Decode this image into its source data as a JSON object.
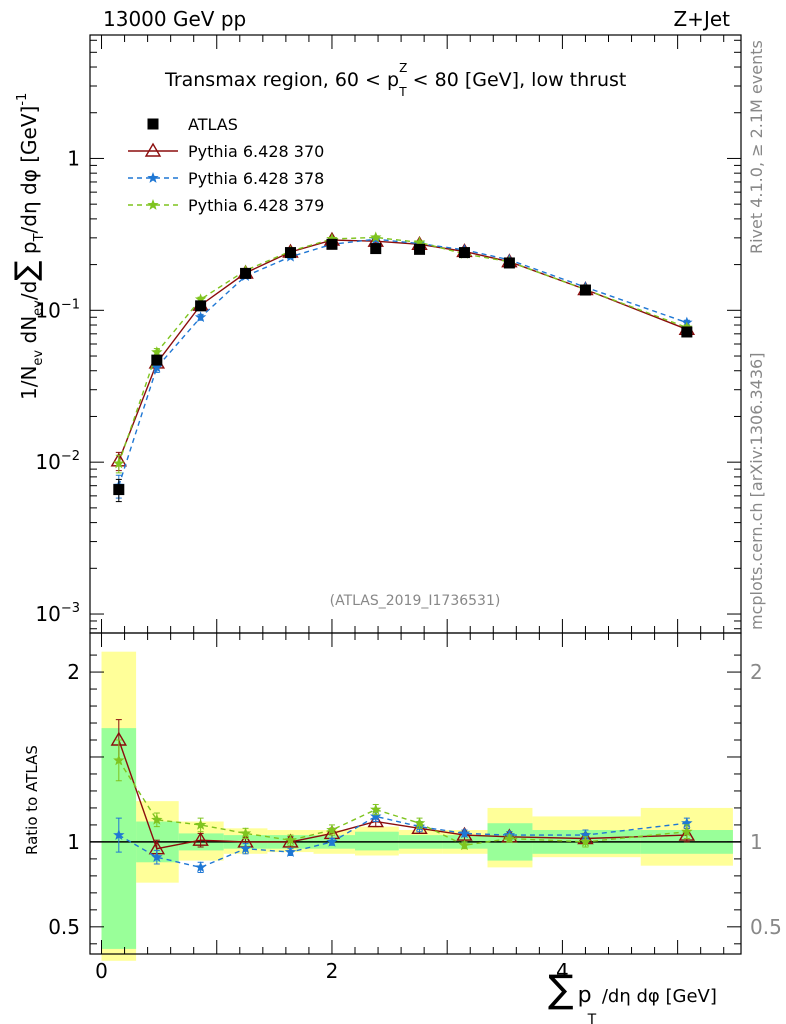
{
  "header": {
    "left": "13000 GeV pp",
    "right": "Z+Jet",
    "side_top": "Rivet 4.1.0, ≥ 2.1M events",
    "side_bottom": "mcplots.cern.ch [arXiv:1306.3436]",
    "ref": "(ATLAS_2019_I1736531)"
  },
  "chart_data": [
    {
      "type": "scatter",
      "panel": "main",
      "title": "Transmax region, 60 < p_T^Z < 80 [GeV], low thrust",
      "title_parts": {
        "a": "Transmax region, 60 < p",
        "sup": "Z",
        "sub": "T",
        "b": " < 80 [GeV], low thrust"
      },
      "ylabel": "1/N_ev dN_ev/d∑ p_T/dη dφ  [GeV]^-1",
      "yscale": "log",
      "ylim": [
        0.00075,
        6.5
      ],
      "xlim": [
        -0.1,
        5.55
      ],
      "ytick_labels": [
        {
          "v": 1,
          "base": "1",
          "exp": ""
        },
        {
          "v": 0.1,
          "base": "10",
          "exp": "−1"
        },
        {
          "v": 0.01,
          "base": "10",
          "exp": "−2"
        },
        {
          "v": 0.001,
          "base": "10",
          "exp": "−3"
        }
      ],
      "x": [
        0.15,
        0.48,
        0.86,
        1.25,
        1.64,
        2.0,
        2.38,
        2.76,
        3.15,
        3.54,
        4.2,
        5.08
      ],
      "series": [
        {
          "name": "ATLAS",
          "color": "#000000",
          "marker": "square",
          "values": [
            0.0066,
            0.047,
            0.107,
            0.175,
            0.24,
            0.272,
            0.255,
            0.252,
            0.24,
            0.205,
            0.136,
            0.072
          ],
          "errors": [
            0.0011,
            0.003,
            0.004,
            0.005,
            0.006,
            0.006,
            0.006,
            0.006,
            0.006,
            0.005,
            0.004,
            0.003
          ]
        },
        {
          "name": "Pythia 6.428 370",
          "color": "#8b0d0d",
          "marker": "triangle",
          "line": "solid",
          "values": [
            0.0102,
            0.045,
            0.108,
            0.176,
            0.242,
            0.29,
            0.285,
            0.272,
            0.244,
            0.209,
            0.137,
            0.075
          ],
          "errors": [
            0.0014,
            0.003,
            0.004,
            0.005,
            0.006,
            0.007,
            0.007,
            0.006,
            0.006,
            0.005,
            0.004,
            0.003
          ]
        },
        {
          "name": "Pythia 6.428 378",
          "color": "#1f77d4",
          "marker": "star",
          "line": "dashed",
          "values": [
            0.007,
            0.042,
            0.09,
            0.168,
            0.225,
            0.272,
            0.294,
            0.275,
            0.25,
            0.215,
            0.142,
            0.083
          ],
          "errors": [
            0.0012,
            0.003,
            0.004,
            0.005,
            0.006,
            0.006,
            0.007,
            0.006,
            0.006,
            0.005,
            0.004,
            0.003
          ]
        },
        {
          "name": "Pythia 6.428 379",
          "color": "#7fc41f",
          "marker": "star",
          "line": "dashed",
          "values": [
            0.0098,
            0.053,
            0.118,
            0.183,
            0.245,
            0.295,
            0.302,
            0.28,
            0.235,
            0.209,
            0.137,
            0.077
          ],
          "errors": [
            0.0013,
            0.003,
            0.004,
            0.005,
            0.006,
            0.007,
            0.007,
            0.006,
            0.006,
            0.005,
            0.004,
            0.003
          ]
        }
      ]
    },
    {
      "type": "scatter",
      "panel": "ratio",
      "ylabel": "Ratio to ATLAS",
      "ylim": [
        0.34,
        2.23
      ],
      "xlim": [
        -0.1,
        5.55
      ],
      "xlabel_parts": {
        "a": "p",
        "sub": "T",
        "b": " /dη dφ [GeV]"
      },
      "ytick_labels": [
        {
          "v": 2,
          "t": "2"
        },
        {
          "v": 1,
          "t": "1"
        },
        {
          "v": 0.5,
          "t": "0.5"
        }
      ],
      "xtick_labels": [
        {
          "v": 0,
          "t": "0"
        },
        {
          "v": 2,
          "t": "2"
        },
        {
          "v": 4,
          "t": "4"
        }
      ],
      "bins": [
        0.0,
        0.3,
        0.67,
        1.06,
        1.44,
        1.84,
        2.2,
        2.58,
        2.96,
        3.35,
        3.74,
        4.68,
        5.48
      ],
      "band_green": [
        [
          0.37,
          1.67
        ],
        [
          0.88,
          1.12
        ],
        [
          0.95,
          1.05
        ],
        [
          0.96,
          1.04
        ],
        [
          0.96,
          1.04
        ],
        [
          0.96,
          1.04
        ],
        [
          0.95,
          1.06
        ],
        [
          0.96,
          1.04
        ],
        [
          0.96,
          1.04
        ],
        [
          0.89,
          1.11
        ],
        [
          0.93,
          1.07
        ],
        [
          0.93,
          1.07
        ]
      ],
      "band_yellow": [
        [
          0.3,
          2.12
        ],
        [
          0.76,
          1.24
        ],
        [
          0.89,
          1.12
        ],
        [
          0.93,
          1.08
        ],
        [
          0.94,
          1.07
        ],
        [
          0.93,
          1.07
        ],
        [
          0.92,
          1.09
        ],
        [
          0.93,
          1.07
        ],
        [
          0.93,
          1.07
        ],
        [
          0.85,
          1.2
        ],
        [
          0.91,
          1.15
        ],
        [
          0.86,
          1.2
        ]
      ],
      "x": [
        0.15,
        0.48,
        0.86,
        1.25,
        1.64,
        2.0,
        2.38,
        2.76,
        3.15,
        3.54,
        4.2,
        5.08
      ],
      "series": [
        {
          "name": "Pythia 6.428 370",
          "color": "#8b0d0d",
          "marker": "triangle",
          "line": "solid",
          "values": [
            1.6,
            0.96,
            1.01,
            1.0,
            1.0,
            1.05,
            1.12,
            1.08,
            1.04,
            1.03,
            1.02,
            1.04
          ],
          "errors": [
            0.12,
            0.05,
            0.04,
            0.03,
            0.03,
            0.03,
            0.03,
            0.03,
            0.03,
            0.03,
            0.03,
            0.04
          ]
        },
        {
          "name": "Pythia 6.428 378",
          "color": "#1f77d4",
          "marker": "star",
          "line": "dashed",
          "values": [
            1.04,
            0.91,
            0.85,
            0.96,
            0.94,
            1.0,
            1.15,
            1.09,
            1.05,
            1.04,
            1.04,
            1.11
          ],
          "errors": [
            0.1,
            0.04,
            0.03,
            0.03,
            0.02,
            0.02,
            0.03,
            0.03,
            0.02,
            0.02,
            0.03,
            0.03
          ]
        },
        {
          "name": "Pythia 6.428 379",
          "color": "#7fc41f",
          "marker": "star",
          "line": "dashed",
          "values": [
            1.48,
            1.13,
            1.1,
            1.05,
            1.01,
            1.07,
            1.19,
            1.11,
            0.98,
            1.02,
            1.0,
            1.06
          ],
          "errors": [
            0.12,
            0.04,
            0.04,
            0.03,
            0.03,
            0.03,
            0.03,
            0.03,
            0.02,
            0.02,
            0.03,
            0.04
          ]
        }
      ]
    }
  ]
}
